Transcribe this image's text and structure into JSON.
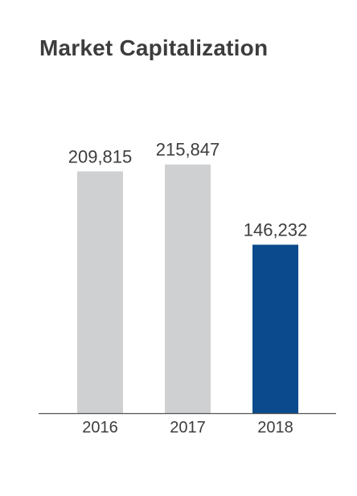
{
  "chart_data": {
    "type": "bar",
    "title": "Market Capitalization",
    "categories": [
      "2016",
      "2017",
      "2018"
    ],
    "values": [
      209815,
      215847,
      146232
    ],
    "value_labels": [
      "209,815",
      "215,847",
      "146,232"
    ],
    "ylim": [
      0,
      300000
    ],
    "grid": false,
    "legend": "none",
    "colors": {
      "default_bar": "#cfd0d1",
      "highlight_bar": "#0b4a8c",
      "axis": "#555555",
      "text": "#3d3d3d"
    },
    "highlight_index": 2
  }
}
